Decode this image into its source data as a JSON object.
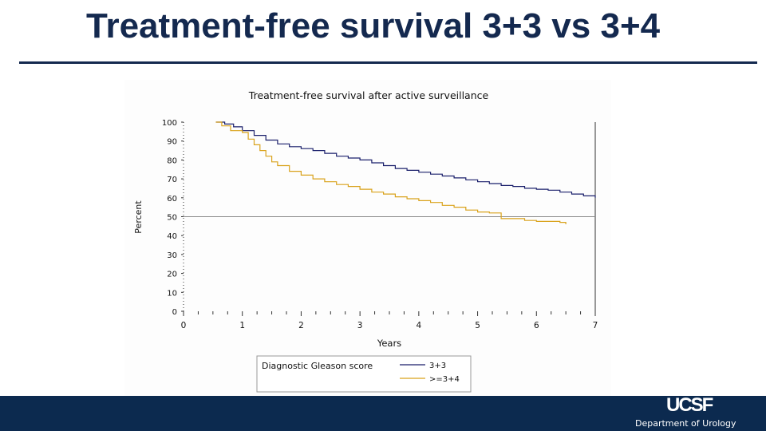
{
  "slide": {
    "title": "Treatment-free survival 3+3 vs 3+4",
    "footer_logo": "UCSF",
    "footer_dept": "Department of Urology"
  },
  "colors": {
    "title": "#14294f",
    "footer": "#0c2a4f",
    "series_3_3": "#1a1f6b",
    "series_3_4": "#d9a21b",
    "reference_line": "#8a8a8a"
  },
  "chart_data": {
    "type": "line",
    "title": "Treatment-free survival after active surveillance",
    "xlabel": "Years",
    "ylabel": "Percent",
    "xlim": [
      0,
      7
    ],
    "ylim": [
      0,
      100
    ],
    "xticks": [
      0,
      1,
      2,
      3,
      4,
      5,
      6,
      7
    ],
    "yticks": [
      0,
      10,
      20,
      30,
      40,
      50,
      60,
      70,
      80,
      90,
      100
    ],
    "reference_y": 50,
    "grid": false,
    "legend_title": "Diagnostic Gleason score",
    "legend_position": "bottom",
    "series": [
      {
        "name": "3+3",
        "color": "#1a1f6b",
        "x": [
          0.55,
          0.7,
          0.85,
          1.0,
          1.2,
          1.4,
          1.6,
          1.8,
          2.0,
          2.2,
          2.4,
          2.6,
          2.8,
          3.0,
          3.2,
          3.4,
          3.6,
          3.8,
          4.0,
          4.2,
          4.4,
          4.6,
          4.8,
          5.0,
          5.2,
          5.4,
          5.6,
          5.8,
          6.0,
          6.2,
          6.4,
          6.6,
          6.8,
          7.0
        ],
        "y": [
          100,
          99,
          97.5,
          95.5,
          93,
          90.5,
          88.5,
          87,
          86,
          85,
          83.5,
          82,
          81,
          80,
          78.5,
          77,
          75.5,
          74.5,
          73.5,
          72.5,
          71.5,
          70.5,
          69.5,
          68.5,
          67.5,
          66.5,
          66,
          65,
          64.5,
          64,
          63,
          62,
          61,
          60
        ]
      },
      {
        "name": ">=3+4",
        "color": "#d9a21b",
        "x": [
          0.55,
          0.65,
          0.8,
          1.0,
          1.1,
          1.2,
          1.3,
          1.4,
          1.5,
          1.6,
          1.8,
          2.0,
          2.2,
          2.4,
          2.6,
          2.8,
          3.0,
          3.2,
          3.4,
          3.6,
          3.8,
          4.0,
          4.2,
          4.4,
          4.6,
          4.8,
          5.0,
          5.2,
          5.4,
          5.6,
          5.8,
          6.0,
          6.2,
          6.4,
          6.5
        ],
        "y": [
          100,
          98,
          95.5,
          94.5,
          91,
          88,
          85,
          82,
          79,
          77,
          74,
          72,
          70,
          68.5,
          67,
          66,
          64.5,
          63,
          62,
          60.5,
          59.5,
          58.5,
          57.5,
          56,
          55,
          53.5,
          52.5,
          52,
          49,
          49,
          48,
          47.5,
          47.5,
          47,
          46
        ]
      }
    ]
  }
}
